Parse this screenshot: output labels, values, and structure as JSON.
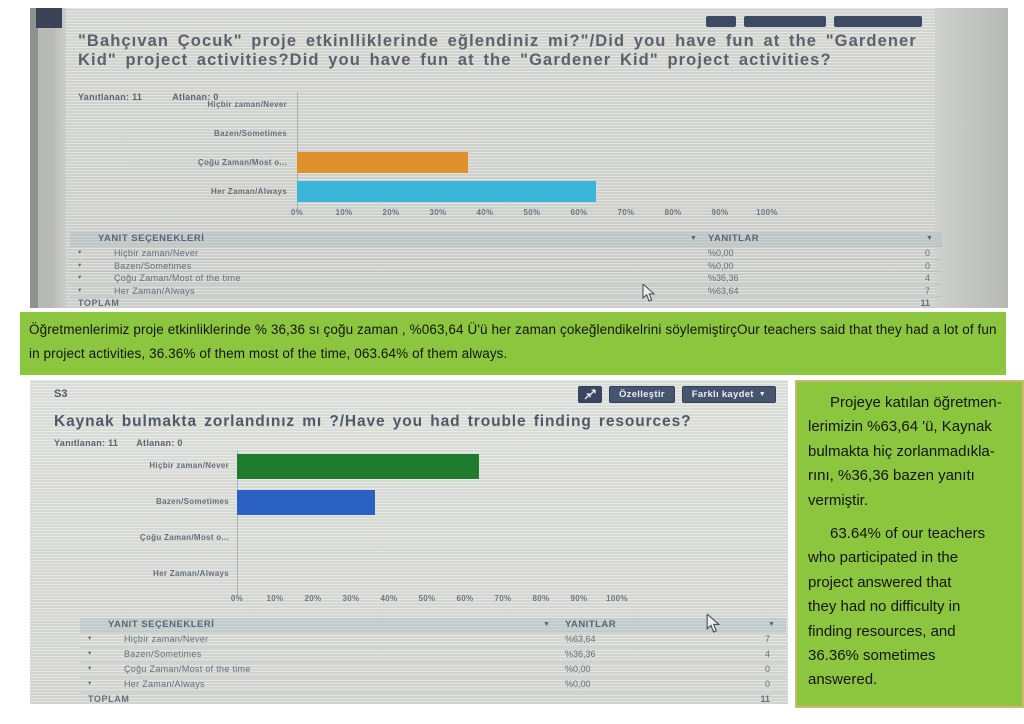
{
  "survey1": {
    "title": "\"Bahçıvan Çocuk\" proje etkinlliklerinde eğlendiniz mi?\"/Did you have fun at the \"Gardener Kid\" project activities?Did you have fun at the \"Gardener Kid\" project activities?",
    "answered": "Yanıtlanan: 11",
    "skipped": "Atlanan: 0",
    "table": {
      "col_options": "YANIT SEÇENEKLERİ",
      "col_answers": "YANITLAR",
      "rows": [
        {
          "label": "Hiçbir zaman/Never",
          "pct": "%0,00",
          "count": "0"
        },
        {
          "label": "Bazen/Sometimes",
          "pct": "%0,00",
          "count": "0"
        },
        {
          "label": "Çoğu Zaman/Most of the time",
          "pct": "%36,36",
          "count": "4"
        },
        {
          "label": "Her Zaman/Always",
          "pct": "%63,64",
          "count": "7"
        }
      ],
      "total_label": "TOPLAM",
      "total": "11"
    }
  },
  "survey2": {
    "s_label": "S3",
    "buttons": {
      "export_icon": "export-arrows",
      "customize": "Özelleştir",
      "save_as": "Farklı kaydet",
      "save_as_caret": "▼"
    },
    "title": "Kaynak bulmakta zorlandınız mı ?/Have you had trouble finding resources?",
    "answered": "Yanıtlanan: 11",
    "skipped": "Atlanan: 0",
    "table": {
      "col_options": "YANIT SEÇENEKLERİ",
      "col_answers": "YANITLAR",
      "rows": [
        {
          "label": "Hiçbir zaman/Never",
          "pct": "%63,64",
          "count": "7"
        },
        {
          "label": "Bazen/Sometimes",
          "pct": "%36,36",
          "count": "4"
        },
        {
          "label": "Çoğu Zaman/Most of the time",
          "pct": "%0,00",
          "count": "0"
        },
        {
          "label": "Her Zaman/Always",
          "pct": "%0,00",
          "count": "0"
        }
      ],
      "total_label": "TOPLAM",
      "total": "11"
    }
  },
  "note1": {
    "text": "Öğretmenlerimiz proje  etkinliklerinde % 36,36 sı çoğu zaman , %063,64 Ü'ü her zaman çokeğlendikelrini söylemiştirçOur teachers said that they had a lot of fun in project activities, 36.36% of them most of the time, 063.64% of them always."
  },
  "note2": {
    "lines": [
      "Projeye katılan öğretmen-",
      "lerimizin %63,64 'ü, Kaynak",
      "bulmakta hiç zorlanmadıkla-",
      "rını, %36,36 bazen yanıtı",
      "vermiştir.",
      "63.64% of our teachers",
      "who participated in the",
      "project answered that",
      "they had no difficulty in",
      "finding resources, and",
      "36.36% sometimes",
      "answered."
    ]
  },
  "colors": {
    "note_green": "#8cc63e",
    "note_border_tan": "#cdb873",
    "bar_orange": "#df922c",
    "bar_cyan": "#39b6d8",
    "bar_green": "#1f7c2d",
    "bar_blue": "#2b60c5",
    "button_navy": "#46546e"
  },
  "chart_data": [
    {
      "type": "bar",
      "orientation": "horizontal",
      "title": "\"Bahçıvan Çocuk\" proje etkinlliklerinde eğlendiniz mi?\"/Did you have fun at the \"Gardener Kid\" project activities?",
      "categories": [
        "Hiçbir zaman/Never",
        "Bazen/Sometimes",
        "Çoğu Zaman/Most o...",
        "Her Zaman/Always"
      ],
      "values": [
        0,
        0,
        36.36,
        63.64
      ],
      "counts": [
        0,
        0,
        4,
        7
      ],
      "total_responses": 11,
      "xlim": [
        0,
        100
      ],
      "xlabel": "",
      "ylabel": "",
      "grid": false,
      "legend": "none",
      "tick_labels": [
        "0%",
        "10%",
        "20%",
        "30%",
        "40%",
        "50%",
        "60%",
        "70%",
        "80%",
        "90%",
        "100%"
      ],
      "bar_colors": [
        "transparent",
        "transparent",
        "#df922c",
        "#39b6d8"
      ]
    },
    {
      "type": "bar",
      "orientation": "horizontal",
      "title": "Kaynak bulmakta zorlandınız mı ?/Have you had trouble finding resources?",
      "categories": [
        "Hiçbir zaman/Never",
        "Bazen/Sometimes",
        "Çoğu Zaman/Most o...",
        "Her Zaman/Always"
      ],
      "values": [
        63.64,
        36.36,
        0,
        0
      ],
      "counts": [
        7,
        4,
        0,
        0
      ],
      "total_responses": 11,
      "xlim": [
        0,
        100
      ],
      "xlabel": "",
      "ylabel": "",
      "grid": false,
      "legend": "none",
      "tick_labels": [
        "0%",
        "10%",
        "20%",
        "30%",
        "40%",
        "50%",
        "60%",
        "70%",
        "80%",
        "90%",
        "100%"
      ],
      "bar_colors": [
        "#1f7c2d",
        "#2b60c5",
        "transparent",
        "transparent"
      ]
    }
  ]
}
